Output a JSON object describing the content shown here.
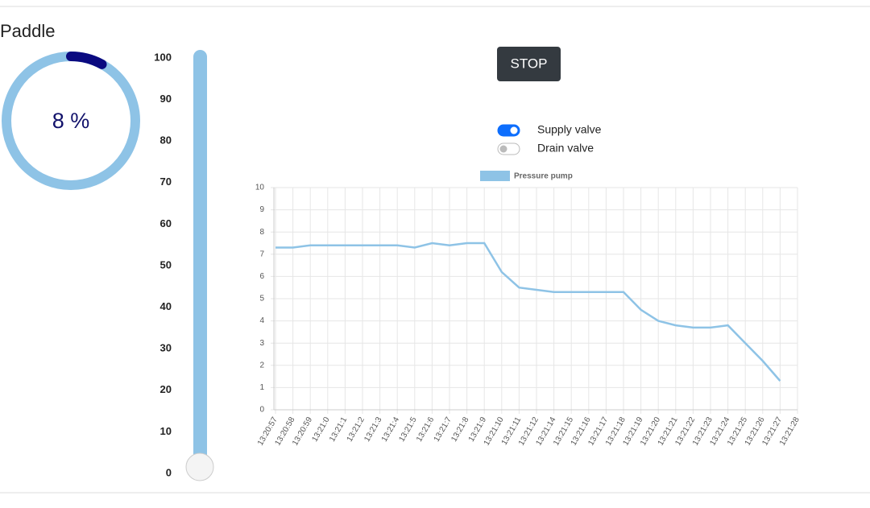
{
  "panel": {
    "title": "Paddle"
  },
  "gauge": {
    "value": 8,
    "label": "8 %"
  },
  "slider": {
    "ticks": [
      100,
      90,
      80,
      70,
      60,
      50,
      40,
      30,
      20,
      10,
      0
    ],
    "value": 0
  },
  "button": {
    "label": "STOP"
  },
  "toggles": [
    {
      "label": "Supply valve",
      "on": true
    },
    {
      "label": "Drain valve",
      "on": false
    }
  ],
  "chart_data": {
    "type": "line",
    "categories": [
      "13:20:57",
      "13:20:58",
      "13:20:59",
      "13:21:0",
      "13:21:1",
      "13:21:2",
      "13:21:3",
      "13:21:4",
      "13:21:5",
      "13:21:6",
      "13:21:7",
      "13:21:8",
      "13:21:9",
      "13:21:10",
      "13:21:11",
      "13:21:12",
      "13:21:14",
      "13:21:15",
      "13:21:16",
      "13:21:17",
      "13:21:18",
      "13:21:19",
      "13:21:20",
      "13:21:21",
      "13:21:22",
      "13:21:23",
      "13:21:24",
      "13:21:25",
      "13:21:26",
      "13:21:27",
      "13:21:28"
    ],
    "series": [
      {
        "name": "Pressure pump",
        "color": "#8ec3e6",
        "values": [
          7.3,
          7.3,
          7.4,
          7.4,
          7.4,
          7.4,
          7.4,
          7.4,
          7.3,
          7.5,
          7.4,
          7.5,
          7.5,
          6.2,
          5.5,
          5.4,
          5.3,
          5.3,
          5.3,
          5.3,
          5.3,
          4.5,
          4.0,
          3.8,
          3.7,
          3.7,
          3.8,
          3.0,
          2.2,
          1.3,
          null
        ]
      }
    ],
    "ylim": [
      0,
      10
    ],
    "yticks": [
      0,
      1,
      2,
      3,
      4,
      5,
      6,
      7,
      8,
      9,
      10
    ],
    "grid": true
  }
}
